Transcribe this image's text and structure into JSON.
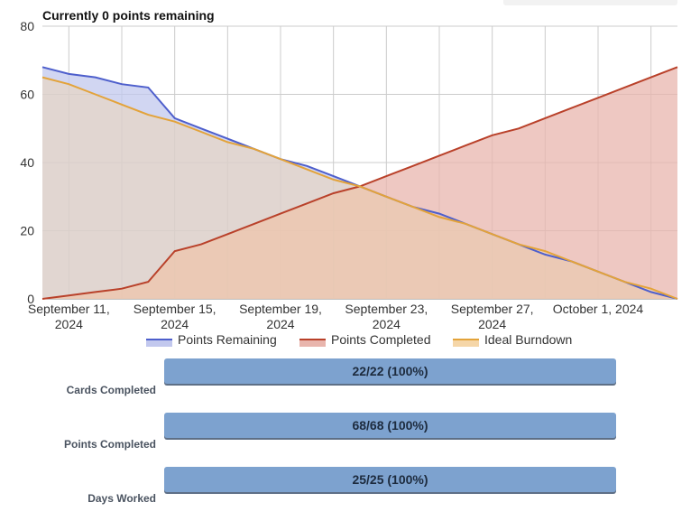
{
  "header": {
    "title": "Currently 0 points remaining"
  },
  "chart_data": {
    "type": "area",
    "title": "Currently 0 points remaining",
    "xlabel": "",
    "ylabel": "",
    "ylim": [
      0,
      80
    ],
    "yticks": [
      0,
      20,
      40,
      60,
      80
    ],
    "xlim": [
      "2024-09-10",
      "2024-10-04"
    ],
    "xticks": [
      {
        "date": "2024-09-11",
        "label": [
          "September 11,",
          "2024"
        ]
      },
      {
        "date": "2024-09-15",
        "label": [
          "September 15,",
          "2024"
        ]
      },
      {
        "date": "2024-09-19",
        "label": [
          "September 19,",
          "2024"
        ]
      },
      {
        "date": "2024-09-23",
        "label": [
          "September 23,",
          "2024"
        ]
      },
      {
        "date": "2024-09-27",
        "label": [
          "September 27,",
          "2024"
        ]
      },
      {
        "date": "2024-10-01",
        "label": [
          "October 1, 2024"
        ]
      }
    ],
    "grid": true,
    "legend_position": "bottom",
    "x": [
      "2024-09-10",
      "2024-09-11",
      "2024-09-12",
      "2024-09-13",
      "2024-09-14",
      "2024-09-15",
      "2024-09-16",
      "2024-09-17",
      "2024-09-18",
      "2024-09-19",
      "2024-09-20",
      "2024-09-21",
      "2024-09-22",
      "2024-09-23",
      "2024-09-24",
      "2024-09-25",
      "2024-09-26",
      "2024-09-27",
      "2024-09-28",
      "2024-09-29",
      "2024-09-30",
      "2024-10-01",
      "2024-10-02",
      "2024-10-03",
      "2024-10-04"
    ],
    "series": [
      {
        "name": "Points Remaining",
        "color": "#4e5fcc",
        "fill": "#c2c8ee",
        "values": [
          68,
          66,
          65,
          63,
          62,
          53,
          50,
          47,
          44,
          41,
          39,
          36,
          33,
          30,
          27,
          25,
          22,
          19,
          16,
          13,
          11,
          8,
          5,
          2,
          0
        ]
      },
      {
        "name": "Points Completed",
        "color": "#b9412a",
        "fill": "#e8b5ad",
        "values": [
          0,
          1,
          2,
          3,
          5,
          14,
          16,
          19,
          22,
          25,
          28,
          31,
          33,
          36,
          39,
          42,
          45,
          48,
          50,
          53,
          56,
          59,
          62,
          65,
          68
        ]
      },
      {
        "name": "Ideal Burndown",
        "color": "#e3a33a",
        "fill": "#f5d6a8",
        "values": [
          65,
          63,
          60,
          57,
          54,
          52,
          49,
          46,
          44,
          41,
          38,
          35,
          33,
          30,
          27,
          24,
          22,
          19,
          16,
          14,
          11,
          8,
          5,
          3,
          0
        ]
      }
    ]
  },
  "stats": [
    {
      "label": "Cards Completed",
      "value": "22/22 (100%)",
      "fraction": 1.0
    },
    {
      "label": "Points Completed",
      "value": "68/68 (100%)",
      "fraction": 1.0
    },
    {
      "label": "Days Worked",
      "value": "25/25 (100%)",
      "fraction": 1.0
    }
  ]
}
